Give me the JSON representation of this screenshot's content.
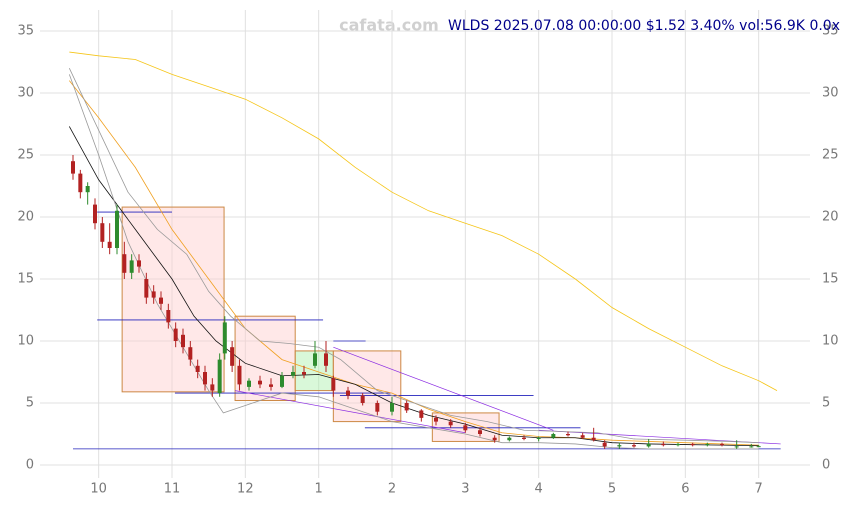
{
  "chart_data": {
    "type": "candlestick",
    "title": "WLDS 2025.07.08 00:00:00 $1.52 3.40% vol:56.9K 0.0x",
    "watermark": "cafata.com",
    "xlim": [
      9.2,
      19.7
    ],
    "xticks": [
      10,
      11,
      12,
      {
        "value": 13,
        "label": "1"
      },
      {
        "value": 14,
        "label": "2"
      },
      {
        "value": 15,
        "label": "3"
      },
      {
        "value": 16,
        "label": "4"
      },
      {
        "value": 17,
        "label": "5"
      },
      {
        "value": 18,
        "label": "6"
      },
      {
        "value": 19,
        "label": "7"
      }
    ],
    "ylim": [
      0,
      35
    ],
    "yticks": [
      0,
      5,
      10,
      15,
      20,
      25,
      30,
      35
    ],
    "grid": true,
    "up_color": "#2e8b2e",
    "down_color": "#b22222",
    "x": [
      9.65,
      9.75,
      9.85,
      9.95,
      10.05,
      10.15,
      10.25,
      10.35,
      10.45,
      10.55,
      10.65,
      10.75,
      10.85,
      10.95,
      11.05,
      11.15,
      11.25,
      11.35,
      11.45,
      11.55,
      11.65,
      11.72,
      11.82,
      11.92,
      12.05,
      12.2,
      12.35,
      12.5,
      12.65,
      12.8,
      12.95,
      13.1,
      13.2,
      13.4,
      13.6,
      13.8,
      14.0,
      14.2,
      14.4,
      14.6,
      14.8,
      15.0,
      15.2,
      15.4,
      15.6,
      15.8,
      16.0,
      16.2,
      16.4,
      16.6,
      16.75,
      16.9,
      17.1,
      17.3,
      17.5,
      17.7,
      17.9,
      18.1,
      18.3,
      18.5,
      18.7,
      18.9,
      19.0
    ],
    "open": [
      24.5,
      23.5,
      22,
      21,
      19.5,
      18,
      17.5,
      17,
      15.5,
      16.5,
      15,
      14,
      13.5,
      12.5,
      11,
      10.5,
      9.5,
      8,
      7.5,
      6.5,
      5.8,
      9,
      9.5,
      8,
      6.3,
      6.8,
      6.5,
      6.3,
      7.2,
      7.5,
      8,
      9,
      7,
      6,
      5.6,
      5,
      4.3,
      5,
      4.4,
      3.8,
      3.5,
      3.2,
      2.8,
      2.2,
      2,
      2.2,
      2.1,
      2.2,
      2.5,
      2.4,
      2.2,
      1.8,
      1.5,
      1.6,
      1.5,
      1.7,
      1.6,
      1.7,
      1.6,
      1.7,
      1.5,
      1.5,
      1.47
    ],
    "high": [
      25,
      23.8,
      22.8,
      21.5,
      20,
      19.5,
      21,
      18,
      17,
      17,
      15.5,
      14.5,
      14,
      13,
      11.5,
      11,
      10,
      8.5,
      8,
      7,
      9,
      12,
      10,
      8.5,
      7,
      7.2,
      7,
      7.5,
      8,
      8,
      10,
      10,
      7.2,
      6.3,
      5.8,
      5.2,
      5.5,
      5.2,
      4.5,
      4,
      3.7,
      3.4,
      3,
      2.4,
      2.3,
      2.4,
      2.3,
      2.6,
      2.7,
      2.6,
      3,
      2,
      1.8,
      1.8,
      2.1,
      1.9,
      1.8,
      1.8,
      1.8,
      1.8,
      2,
      1.7,
      1.6
    ],
    "low": [
      23,
      21.5,
      21,
      19,
      17.5,
      17,
      17,
      15,
      15,
      15.5,
      13,
      13,
      12.5,
      11,
      9.5,
      9,
      8,
      7,
      6,
      5.5,
      5.5,
      8.5,
      7.5,
      6,
      6,
      6.2,
      6,
      6.2,
      7,
      7,
      7.8,
      7.5,
      5.5,
      5.3,
      4.8,
      4,
      4,
      4.2,
      3.5,
      3.2,
      3,
      2.6,
      2.3,
      1.8,
      1.9,
      2,
      1.9,
      2.1,
      2.3,
      2.1,
      1.9,
      1.3,
      1.3,
      1.4,
      1.4,
      1.5,
      1.5,
      1.5,
      1.5,
      1.5,
      1.3,
      1.4,
      1.45
    ],
    "close": [
      23.5,
      22,
      22.5,
      19.5,
      18,
      17.5,
      20.5,
      15.5,
      16.5,
      16,
      13.5,
      13.5,
      13,
      11.5,
      10,
      9.5,
      8.5,
      7.5,
      6.5,
      6,
      8.5,
      11.5,
      8,
      6.5,
      6.8,
      6.5,
      6.3,
      7.2,
      7.5,
      7.3,
      9,
      8,
      6,
      5.6,
      5,
      4.3,
      5,
      4.4,
      3.8,
      3.5,
      3.2,
      2.8,
      2.5,
      2,
      2.2,
      2.1,
      2.2,
      2.5,
      2.4,
      2.2,
      2,
      1.5,
      1.6,
      1.5,
      1.7,
      1.6,
      1.7,
      1.6,
      1.7,
      1.6,
      1.5,
      1.5,
      1.52
    ],
    "lines": [
      {
        "color": "#f5c518",
        "x": [
          9.6,
          10,
          10.5,
          11,
          11.5,
          12,
          12.5,
          13,
          13.5,
          14,
          14.5,
          15,
          15.5,
          16,
          16.5,
          17,
          17.5,
          18,
          18.5,
          19,
          19.25
        ],
        "values": [
          33.3,
          33,
          32.7,
          31.5,
          30.5,
          29.5,
          28,
          26.3,
          24,
          22,
          20.5,
          19.5,
          18.5,
          17,
          15,
          12.7,
          11,
          9.5,
          8,
          6.8,
          6
        ]
      },
      {
        "color": "#f0a020",
        "x": [
          9.6,
          10,
          10.5,
          11,
          11.5,
          12,
          12.5,
          13,
          13.5,
          14,
          14.5,
          15,
          15.5,
          16,
          16.5,
          17,
          17.5,
          18,
          18.5,
          19
        ],
        "values": [
          31,
          28,
          24,
          19,
          15,
          11,
          8.5,
          7.5,
          6.5,
          5.8,
          4.5,
          3.5,
          2.6,
          2.3,
          2.2,
          2,
          1.9,
          1.8,
          1.7,
          1.6
        ]
      },
      {
        "color": "#111111",
        "x": [
          9.6,
          10,
          10.5,
          11,
          11.3,
          11.6,
          12,
          12.5,
          13,
          13.5,
          14,
          14.5,
          15,
          15.5,
          16,
          16.5,
          17,
          17.5,
          18,
          18.5,
          19
        ],
        "values": [
          27.3,
          23,
          19,
          15,
          12,
          10,
          8.2,
          7.2,
          7.3,
          6.5,
          5,
          4,
          3.3,
          2.4,
          2.2,
          2.2,
          1.8,
          1.7,
          1.65,
          1.6,
          1.55
        ]
      },
      {
        "color": "#999999",
        "x": [
          9.6,
          10,
          10.4,
          10.8,
          11.2,
          11.5,
          11.8,
          12.2,
          12.6,
          13,
          13.3,
          13.8,
          14.3,
          14.8,
          15.3,
          15.8,
          16.3,
          16.8,
          17.3,
          18,
          18.6,
          19
        ],
        "values": [
          32,
          27,
          22,
          19,
          17,
          14,
          12,
          10,
          9.8,
          9.5,
          8.5,
          6,
          5,
          4,
          3.5,
          2.8,
          2.7,
          2.6,
          2.1,
          2,
          1.9,
          1.8
        ]
      },
      {
        "color": "#999999",
        "x": [
          9.6,
          10,
          10.4,
          10.8,
          11.2,
          11.5,
          11.7,
          12,
          12.5,
          13,
          13.5,
          14,
          14.5,
          15,
          15.5,
          16,
          16.5,
          17,
          17.5,
          18,
          19
        ],
        "values": [
          31.5,
          25,
          18,
          13,
          9,
          6,
          4.2,
          4.8,
          5.8,
          5.5,
          4.5,
          3.5,
          3,
          2.5,
          1.8,
          1.8,
          1.7,
          1.4,
          1.3,
          1.3,
          1.3
        ]
      }
    ],
    "boxes": [
      {
        "color": "#ffcccc",
        "x0": 10.32,
        "x1": 11.71,
        "y0": 5.9,
        "y1": 20.8
      },
      {
        "color": "#ffcccc",
        "x0": 11.86,
        "x1": 12.68,
        "y0": 5.2,
        "y1": 12
      },
      {
        "color": "#aaf0aa",
        "x0": 12.68,
        "x1": 13.2,
        "y0": 6,
        "y1": 9.2
      },
      {
        "color": "#ffcccc",
        "x0": 13.2,
        "x1": 14.12,
        "y0": 3.5,
        "y1": 9.2
      },
      {
        "color": "#ffcccc",
        "x0": 14.55,
        "x1": 15.46,
        "y0": 1.9,
        "y1": 4.2
      }
    ],
    "levels": [
      {
        "x0": 9.98,
        "x1": 11.0,
        "y": 20.4
      },
      {
        "x0": 9.98,
        "x1": 13.06,
        "y": 11.7
      },
      {
        "x0": 13.2,
        "x1": 13.64,
        "y": 10
      },
      {
        "x0": 11.04,
        "x1": 13.98,
        "y": 5.8
      },
      {
        "x0": 13.29,
        "x1": 15.93,
        "y": 5.6
      },
      {
        "x0": 13.63,
        "x1": 16.57,
        "y": 3
      },
      {
        "x0": 9.65,
        "x1": 19.3,
        "y": 1.3
      }
    ],
    "trendlines": [
      {
        "x0": 11.86,
        "y0": 6,
        "x1": 15.0,
        "y1": 2.6
      },
      {
        "x0": 13.2,
        "y0": 9.5,
        "x1": 16.2,
        "y1": 2.8
      },
      {
        "x0": 16.0,
        "y0": 2.8,
        "x1": 19.3,
        "y1": 1.7
      }
    ]
  }
}
